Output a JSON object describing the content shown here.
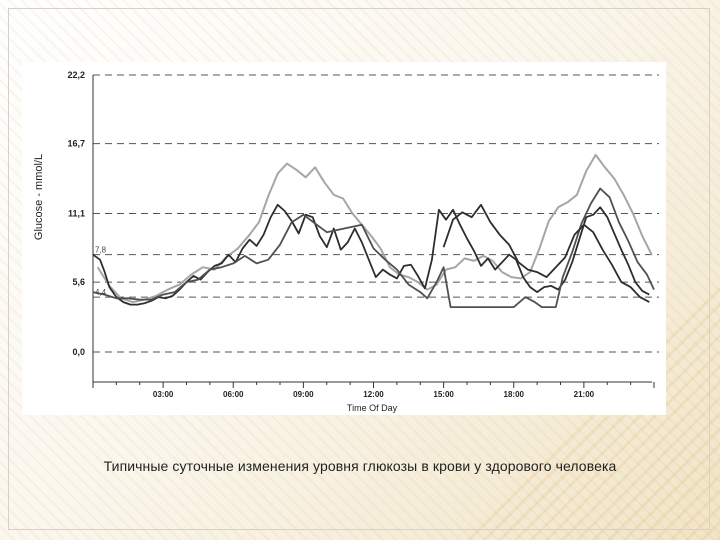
{
  "caption": "Типичные суточные изменения уровня глюкозы в крови у здорового человека",
  "colors": {
    "dark": "#2e2e2e",
    "mid": "#505050",
    "light": "#a6a6a6",
    "grid": "#555555"
  },
  "chart_data": {
    "type": "line",
    "title": "",
    "xlabel": "Time Of Day",
    "ylabel": "Glucose - mmol/L",
    "xlim": [
      0,
      24
    ],
    "ylim": [
      0,
      22.2
    ],
    "y_ticks": [
      {
        "value": 0.0,
        "label": "0,0"
      },
      {
        "value": 5.6,
        "label": "5,6"
      },
      {
        "value": 11.1,
        "label": "11,1"
      },
      {
        "value": 16.7,
        "label": "16,7"
      },
      {
        "value": 22.2,
        "label": "22,2"
      }
    ],
    "ref_lines": [
      {
        "value": 7.8,
        "label": "7,8"
      },
      {
        "value": 4.4,
        "label": "4,4"
      }
    ],
    "x_ticks": [
      {
        "value": 3,
        "label": "03:00"
      },
      {
        "value": 6,
        "label": "06:00"
      },
      {
        "value": 9,
        "label": "09:00"
      },
      {
        "value": 12,
        "label": "12:00"
      },
      {
        "value": 15,
        "label": "15:00"
      },
      {
        "value": 18,
        "label": "18:00"
      },
      {
        "value": 21,
        "label": "21:00"
      }
    ],
    "grid": "dashed horizontal",
    "series": [
      {
        "color": "light",
        "x": [
          0.2,
          0.7,
          1.2,
          1.7,
          2.2,
          2.7,
          3.2,
          3.7,
          4.2,
          4.7,
          5.2,
          5.7,
          6.2,
          6.7,
          7.1,
          7.5,
          7.9,
          8.3,
          8.7,
          9.1,
          9.5,
          9.9,
          10.3,
          10.7,
          11.1,
          11.5,
          11.9,
          12.3,
          12.7,
          13.1,
          13.5,
          13.9,
          14.3,
          14.7,
          15.1,
          15.5,
          15.9,
          16.3,
          16.7,
          17.1,
          17.5,
          17.9,
          18.3,
          18.7,
          19.1,
          19.5,
          19.9,
          20.3,
          20.7,
          21.1,
          21.5,
          21.9,
          22.3,
          22.7,
          23.1,
          23.5,
          23.9
        ],
        "y": [
          6.8,
          5.3,
          4.3,
          4.0,
          4.2,
          4.5,
          5.0,
          5.4,
          6.2,
          6.8,
          6.6,
          7.6,
          8.3,
          9.4,
          10.4,
          12.5,
          14.3,
          15.1,
          14.6,
          14.0,
          14.8,
          13.6,
          12.6,
          12.3,
          11.1,
          10.2,
          9.3,
          8.3,
          6.8,
          6.2,
          6.0,
          5.6,
          5.0,
          5.4,
          6.6,
          6.8,
          7.5,
          7.3,
          7.7,
          7.3,
          6.4,
          6.0,
          5.9,
          6.4,
          8.3,
          10.5,
          11.6,
          12.0,
          12.6,
          14.5,
          15.8,
          14.8,
          13.9,
          12.6,
          11.1,
          9.3,
          7.8
        ]
      },
      {
        "color": "dark",
        "x": [
          0.0,
          0.3,
          0.5,
          0.7,
          1.0,
          1.3,
          1.6,
          1.9,
          2.2,
          2.5,
          2.8,
          3.1,
          3.4,
          3.7,
          4.0,
          4.3,
          4.6,
          4.9,
          5.2,
          5.5,
          5.8,
          6.1,
          6.4,
          6.7,
          7.0,
          7.3,
          7.6,
          7.9,
          8.2,
          8.5,
          8.8,
          9.1,
          9.4,
          9.7,
          10.0,
          10.3,
          10.6,
          10.9,
          11.2,
          11.5,
          11.8,
          12.1,
          12.4,
          12.7,
          13.0,
          13.3,
          13.6,
          13.9,
          14.2,
          14.5,
          14.8,
          15.1,
          15.4,
          15.7,
          16.0,
          16.3,
          16.6,
          16.9,
          17.2,
          17.5,
          17.8,
          18.1,
          18.4,
          18.7,
          19.0,
          19.3,
          19.6,
          19.9,
          20.2,
          20.5,
          20.8,
          21.1,
          21.4,
          21.7,
          22.0,
          22.3,
          22.6,
          22.9,
          23.2,
          23.5,
          23.8
        ],
        "y": [
          7.8,
          7.4,
          6.4,
          5.2,
          4.4,
          4.0,
          3.8,
          3.8,
          3.9,
          4.1,
          4.4,
          4.3,
          4.5,
          5.0,
          5.6,
          6.1,
          5.8,
          6.4,
          6.9,
          7.1,
          7.8,
          7.2,
          8.3,
          9.0,
          8.5,
          9.4,
          10.8,
          11.8,
          11.3,
          10.5,
          9.5,
          11.0,
          10.8,
          9.3,
          8.4,
          9.9,
          8.2,
          8.8,
          9.9,
          8.8,
          7.4,
          6.0,
          6.6,
          6.2,
          5.9,
          6.9,
          7.0,
          6.1,
          5.1,
          7.4,
          11.4,
          10.6,
          11.4,
          10.2,
          9.1,
          8.1,
          6.9,
          7.5,
          6.6,
          7.2,
          7.8,
          7.4,
          6.0,
          5.2,
          4.8,
          5.2,
          5.3,
          5.0,
          5.8,
          7.2,
          9.0,
          10.8,
          11.0,
          11.6,
          10.8,
          9.5,
          8.2,
          7.0,
          5.6,
          4.9,
          4.6
        ]
      },
      {
        "color": "mid",
        "x": [
          0.0,
          0.5,
          1.0,
          1.5,
          2.0,
          2.5,
          3.0,
          3.5,
          4.0,
          4.5,
          5.0,
          5.5,
          6.0,
          6.5,
          7.0,
          7.5,
          8.0,
          8.5,
          9.0,
          9.5,
          10.0,
          10.5,
          11.0,
          11.5,
          12.0,
          12.5,
          13.0,
          13.5,
          14.0,
          14.3,
          14.7,
          15.0,
          15.3,
          15.7,
          16.0,
          16.5,
          17.0,
          17.5,
          18.0,
          18.5,
          18.9,
          19.2,
          19.5,
          19.8,
          20.1,
          20.5,
          20.9,
          21.3,
          21.7,
          22.1,
          22.5,
          22.9,
          23.3,
          23.7,
          24.0
        ],
        "y": [
          4.8,
          4.6,
          4.3,
          4.3,
          4.2,
          4.2,
          4.6,
          4.8,
          5.6,
          5.8,
          6.6,
          6.8,
          7.1,
          7.7,
          7.1,
          7.4,
          8.6,
          10.4,
          11.0,
          10.3,
          9.6,
          9.8,
          10.0,
          10.2,
          8.3,
          7.4,
          6.6,
          5.4,
          4.8,
          4.3,
          5.6,
          6.8,
          3.6,
          3.6,
          3.6,
          3.6,
          3.6,
          3.6,
          3.6,
          4.4,
          4.0,
          3.6,
          3.6,
          3.6,
          6.0,
          8.0,
          10.3,
          11.9,
          13.1,
          12.4,
          10.4,
          8.9,
          7.2,
          6.2,
          5.0
        ]
      },
      {
        "color": "dark",
        "x": [
          15.0,
          15.4,
          15.8,
          16.2,
          16.6,
          17.0,
          17.4,
          17.8,
          18.2,
          18.6,
          19.0,
          19.4,
          19.8,
          20.2,
          20.6,
          21.0,
          21.4,
          21.8,
          22.2,
          22.6,
          23.0,
          23.4,
          23.8
        ],
        "y": [
          8.4,
          10.6,
          11.2,
          10.8,
          11.8,
          10.4,
          9.4,
          8.6,
          7.2,
          6.6,
          6.4,
          6.0,
          6.8,
          7.6,
          9.4,
          10.2,
          9.6,
          8.2,
          7.0,
          5.6,
          5.2,
          4.4,
          4.0
        ]
      }
    ]
  }
}
